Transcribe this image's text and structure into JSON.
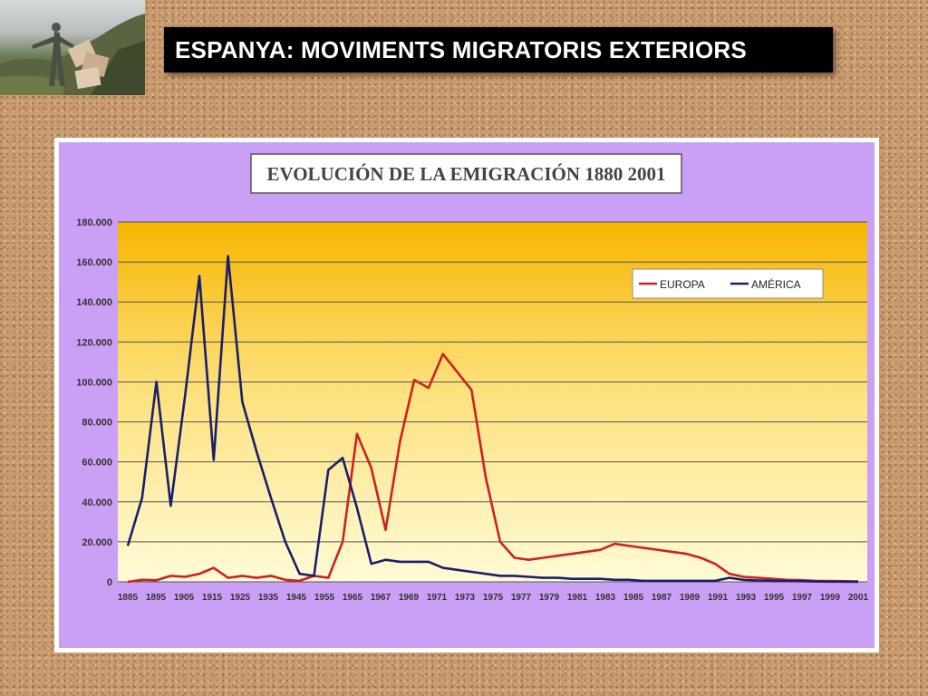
{
  "slide": {
    "title": "ESPANYA: MOVIMENTS MIGRATORIS EXTERIORS"
  },
  "colors": {
    "europa": "#cc2222",
    "america": "#1a1f6b",
    "chart_bg": "#c9a0f5",
    "plot_top": "#f7b500",
    "plot_bottom": "#fffcd8"
  },
  "chart_data": {
    "type": "line",
    "title": "EVOLUCIÓN DE LA EMIGRACIÓN 1880 2001",
    "xlabel": "",
    "ylabel": "",
    "ylim": [
      0,
      180000
    ],
    "y_tick_labels": [
      "0",
      "20.000",
      "40.000",
      "60.000",
      "80.000",
      "100.000",
      "120.000",
      "140.000",
      "160.000",
      "180.000"
    ],
    "x_tick_labels": [
      "1885",
      "1895",
      "1905",
      "1915",
      "1925",
      "1935",
      "1945",
      "1955",
      "1965",
      "1967",
      "1969",
      "1971",
      "1973",
      "1975",
      "1977",
      "1979",
      "1981",
      "1983",
      "1985",
      "1987",
      "1989",
      "1991",
      "1993",
      "1995",
      "1997",
      "1999",
      "2001"
    ],
    "grid": true,
    "legend_position": "top-right",
    "series": [
      {
        "name": "EUROPA",
        "values": [
          0,
          1000,
          800,
          3000,
          2500,
          4000,
          7000,
          2000,
          3000,
          2000,
          3000,
          1000,
          500,
          3000,
          2000,
          20000,
          74000,
          57000,
          26000,
          70000,
          101000,
          97000,
          114000,
          105000,
          96000,
          52000,
          20000,
          12000,
          11000,
          12000,
          13000,
          14000,
          15000,
          16000,
          19000,
          18000,
          17000,
          16000,
          15000,
          14000,
          12000,
          9000,
          4000,
          2500,
          2000,
          1500,
          1000,
          800,
          500,
          400,
          300,
          200
        ]
      },
      {
        "name": "AMÉRICA",
        "values": [
          18000,
          42000,
          100000,
          38000,
          93000,
          153000,
          61000,
          163000,
          90000,
          65000,
          42000,
          20000,
          4000,
          3000,
          56000,
          62000,
          37000,
          9000,
          11000,
          10000,
          10000,
          10000,
          7000,
          6000,
          5000,
          4000,
          3000,
          3000,
          2500,
          2000,
          2000,
          1500,
          1500,
          1500,
          1000,
          1000,
          500,
          500,
          500,
          500,
          500,
          500,
          2000,
          1000,
          700,
          500,
          400,
          300,
          200,
          100,
          100,
          0
        ]
      }
    ]
  }
}
